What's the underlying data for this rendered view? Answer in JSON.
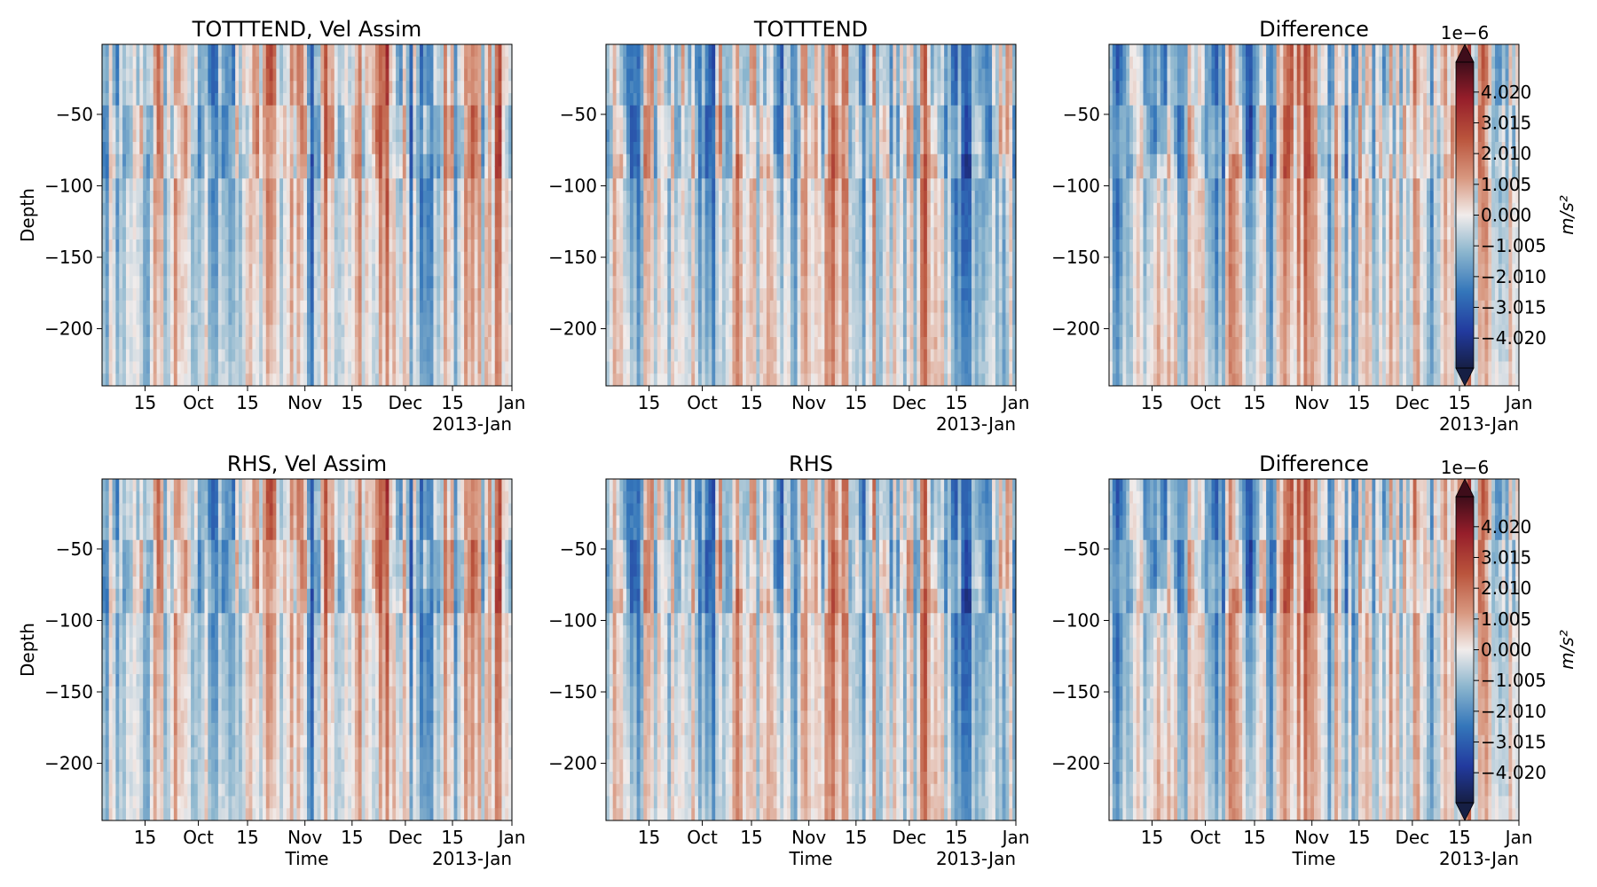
{
  "chart_data": [
    {
      "type": "heatmap",
      "title": "TOTTTEND, Vel Assim",
      "ylabel": "Depth",
      "xlabel": "",
      "ylim": [
        -240,
        -1
      ],
      "yticks": [
        "−50",
        "−100",
        "−150",
        "−200"
      ],
      "ytick_values": [
        -50,
        -100,
        -150,
        -200
      ],
      "xticks": [
        "15",
        "Oct",
        "15",
        "Nov",
        "15",
        "Dec",
        "15",
        "Jan"
      ],
      "xtick_secondary": "2013-Jan",
      "colormap": "diverging red-blue",
      "seed": 11
    },
    {
      "type": "heatmap",
      "title": "TOTTTEND",
      "ylabel": "",
      "xlabel": "",
      "ylim": [
        -240,
        -1
      ],
      "yticks": [
        "−50",
        "−100",
        "−150",
        "−200"
      ],
      "ytick_values": [
        -50,
        -100,
        -150,
        -200
      ],
      "xticks": [
        "15",
        "Oct",
        "15",
        "Nov",
        "15",
        "Dec",
        "15",
        "Jan"
      ],
      "xtick_secondary": "2013-Jan",
      "colormap": "diverging red-blue",
      "seed": 23
    },
    {
      "type": "heatmap",
      "title": "Difference",
      "ylabel": "",
      "xlabel": "",
      "ylim": [
        -240,
        -1
      ],
      "yticks": [
        "−50",
        "−100",
        "−150",
        "−200"
      ],
      "ytick_values": [
        -50,
        -100,
        -150,
        -200
      ],
      "xticks": [
        "15",
        "Oct",
        "15",
        "Nov",
        "15",
        "Dec",
        "15",
        "Jan"
      ],
      "xtick_secondary": "2013-Jan",
      "colormap": "diverging red-blue",
      "seed": 37,
      "colorbar": {
        "exponent": "1e−6",
        "unit_label": "m/s²",
        "ticks": [
          "4.020",
          "3.015",
          "2.010",
          "1.005",
          "0.000",
          "−1.005",
          "−2.010",
          "−3.015",
          "−4.020"
        ],
        "tick_values": [
          4.02,
          3.015,
          2.01,
          1.005,
          0.0,
          -1.005,
          -2.01,
          -3.015,
          -4.02
        ],
        "range": [
          -5.0,
          5.0
        ]
      }
    },
    {
      "type": "heatmap",
      "title": "RHS, Vel Assim",
      "ylabel": "Depth",
      "xlabel": "Time",
      "ylim": [
        -240,
        -1
      ],
      "yticks": [
        "−50",
        "−100",
        "−150",
        "−200"
      ],
      "ytick_values": [
        -50,
        -100,
        -150,
        -200
      ],
      "xticks": [
        "15",
        "Oct",
        "15",
        "Nov",
        "15",
        "Dec",
        "15",
        "Jan"
      ],
      "xtick_secondary": "2013-Jan",
      "colormap": "diverging red-blue",
      "seed": 11
    },
    {
      "type": "heatmap",
      "title": "RHS",
      "ylabel": "",
      "xlabel": "Time",
      "ylim": [
        -240,
        -1
      ],
      "yticks": [
        "−50",
        "−100",
        "−150",
        "−200"
      ],
      "ytick_values": [
        -50,
        -100,
        -150,
        -200
      ],
      "xticks": [
        "15",
        "Oct",
        "15",
        "Nov",
        "15",
        "Dec",
        "15",
        "Jan"
      ],
      "xtick_secondary": "2013-Jan",
      "colormap": "diverging red-blue",
      "seed": 23
    },
    {
      "type": "heatmap",
      "title": "Difference",
      "ylabel": "",
      "xlabel": "Time",
      "ylim": [
        -240,
        -1
      ],
      "yticks": [
        "−50",
        "−100",
        "−150",
        "−200"
      ],
      "ytick_values": [
        -50,
        -100,
        -150,
        -200
      ],
      "xticks": [
        "15",
        "Oct",
        "15",
        "Nov",
        "15",
        "Dec",
        "15",
        "Jan"
      ],
      "xtick_secondary": "2013-Jan",
      "colormap": "diverging red-blue",
      "seed": 37,
      "colorbar": {
        "exponent": "1e−6",
        "unit_label": "m/s²",
        "ticks": [
          "4.020",
          "3.015",
          "2.010",
          "1.005",
          "0.000",
          "−1.005",
          "−2.010",
          "−3.015",
          "−4.020"
        ],
        "tick_values": [
          4.02,
          3.015,
          2.01,
          1.005,
          0.0,
          -1.005,
          -2.01,
          -3.015,
          -4.02
        ],
        "range": [
          -5.0,
          5.0
        ]
      }
    }
  ]
}
